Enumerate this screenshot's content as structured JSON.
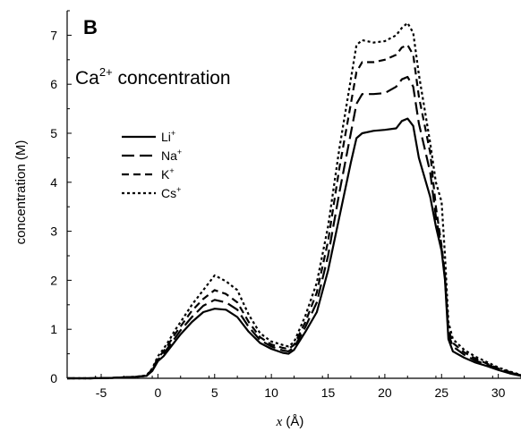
{
  "chart_data": {
    "type": "line",
    "panel_label": "B",
    "annotation": {
      "base": "Ca",
      "sup": "2+",
      "rest": " concentration"
    },
    "xlabel": {
      "italic": "x",
      "rest": " (Å)"
    },
    "ylabel": "concentration (M)",
    "xlim": [
      -8,
      32
    ],
    "ylim": [
      0,
      7.5
    ],
    "xticks": [
      -5,
      0,
      5,
      10,
      15,
      20,
      25,
      30
    ],
    "yticks": [
      0,
      1,
      2,
      3,
      4,
      5,
      6,
      7
    ],
    "grid": false,
    "legend_position": "upper-left",
    "x": [
      -8,
      -6,
      -4,
      -2,
      -1,
      -0.5,
      0,
      0.5,
      1,
      1.5,
      2,
      3,
      4,
      5,
      6,
      7,
      8,
      9,
      10,
      11,
      11.5,
      12,
      13,
      14,
      15,
      16,
      17,
      17.5,
      18,
      19,
      20,
      21,
      21.5,
      22,
      22.5,
      23,
      24,
      24.5,
      25,
      25.3,
      25.6,
      26,
      27,
      28,
      29,
      30,
      31,
      32
    ],
    "series": [
      {
        "name": "Li",
        "sup": "+",
        "dash": "solid",
        "values": [
          0,
          0,
          0.01,
          0.03,
          0.05,
          0.15,
          0.35,
          0.45,
          0.6,
          0.75,
          0.9,
          1.15,
          1.35,
          1.42,
          1.4,
          1.25,
          0.95,
          0.72,
          0.6,
          0.52,
          0.5,
          0.58,
          0.95,
          1.35,
          2.2,
          3.3,
          4.4,
          4.9,
          5.0,
          5.05,
          5.07,
          5.1,
          5.25,
          5.3,
          5.15,
          4.5,
          3.7,
          3.1,
          2.6,
          2.0,
          0.8,
          0.55,
          0.42,
          0.32,
          0.25,
          0.17,
          0.1,
          0.05
        ]
      },
      {
        "name": "Na",
        "sup": "+",
        "dash": "longdash",
        "values": [
          0,
          0,
          0.01,
          0.03,
          0.05,
          0.17,
          0.38,
          0.5,
          0.66,
          0.82,
          0.98,
          1.25,
          1.48,
          1.6,
          1.55,
          1.4,
          1.05,
          0.78,
          0.65,
          0.57,
          0.55,
          0.63,
          1.05,
          1.55,
          2.5,
          3.8,
          5.0,
          5.6,
          5.8,
          5.8,
          5.82,
          5.95,
          6.1,
          6.15,
          5.95,
          5.2,
          4.2,
          3.3,
          2.65,
          2.05,
          0.9,
          0.65,
          0.48,
          0.36,
          0.28,
          0.19,
          0.12,
          0.06
        ]
      },
      {
        "name": "K",
        "sup": "+",
        "dash": "dash",
        "values": [
          0,
          0,
          0.01,
          0.03,
          0.05,
          0.19,
          0.41,
          0.55,
          0.72,
          0.9,
          1.06,
          1.38,
          1.62,
          1.8,
          1.72,
          1.55,
          1.15,
          0.84,
          0.69,
          0.62,
          0.6,
          0.68,
          1.15,
          1.75,
          2.8,
          4.3,
          5.6,
          6.25,
          6.45,
          6.45,
          6.5,
          6.6,
          6.75,
          6.8,
          6.6,
          5.75,
          4.6,
          3.5,
          2.7,
          2.1,
          1.0,
          0.72,
          0.53,
          0.4,
          0.3,
          0.2,
          0.13,
          0.06
        ]
      },
      {
        "name": "Cs",
        "sup": "+",
        "dash": "dot",
        "values": [
          0,
          0,
          0.01,
          0.03,
          0.06,
          0.2,
          0.45,
          0.6,
          0.78,
          0.98,
          1.15,
          1.5,
          1.8,
          2.1,
          1.98,
          1.8,
          1.3,
          0.92,
          0.75,
          0.68,
          0.65,
          0.74,
          1.28,
          1.95,
          3.1,
          4.7,
          6.1,
          6.8,
          6.9,
          6.85,
          6.88,
          7.0,
          7.15,
          7.25,
          7.05,
          6.2,
          4.8,
          4.0,
          3.6,
          2.5,
          1.15,
          0.8,
          0.58,
          0.44,
          0.33,
          0.22,
          0.14,
          0.07
        ]
      }
    ]
  }
}
